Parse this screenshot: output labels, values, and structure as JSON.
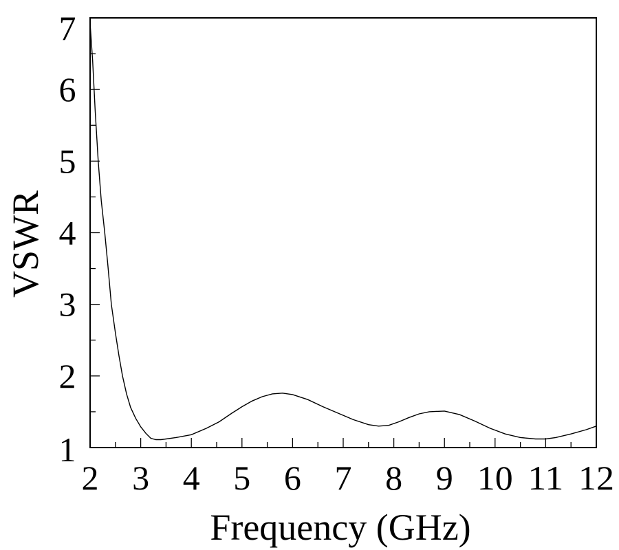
{
  "chart_data": {
    "type": "line",
    "title": "",
    "xlabel": "Frequency (GHz)",
    "ylabel": "VSWR",
    "xlim": [
      2,
      12
    ],
    "ylim": [
      1,
      7
    ],
    "xticks": [
      2,
      3,
      4,
      5,
      6,
      7,
      8,
      9,
      10,
      11,
      12
    ],
    "yticks": [
      1,
      2,
      3,
      4,
      5,
      6,
      7
    ],
    "x_minor_step": 0.5,
    "y_minor_step": 0.5,
    "grid": false,
    "legend": null,
    "series": [
      {
        "name": "VSWR",
        "color": "#000000",
        "x": [
          2.0,
          2.05,
          2.1,
          2.16,
          2.22,
          2.29,
          2.35,
          2.42,
          2.5,
          2.57,
          2.64,
          2.72,
          2.8,
          2.9,
          3.0,
          3.1,
          3.2,
          3.3,
          3.4,
          3.5,
          3.7,
          4.0,
          4.3,
          4.55,
          4.8,
          5.0,
          5.2,
          5.4,
          5.6,
          5.8,
          6.0,
          6.3,
          6.6,
          6.9,
          7.2,
          7.5,
          7.7,
          7.9,
          8.1,
          8.3,
          8.5,
          8.7,
          9.0,
          9.3,
          9.6,
          9.9,
          10.2,
          10.5,
          10.8,
          11.0,
          11.2,
          11.5,
          11.8,
          12.0
        ],
        "y": [
          6.92,
          6.4,
          5.7,
          5.0,
          4.45,
          4.0,
          3.55,
          3.0,
          2.6,
          2.28,
          2.0,
          1.75,
          1.56,
          1.41,
          1.29,
          1.2,
          1.13,
          1.11,
          1.11,
          1.12,
          1.14,
          1.18,
          1.27,
          1.36,
          1.48,
          1.57,
          1.65,
          1.71,
          1.75,
          1.76,
          1.74,
          1.67,
          1.57,
          1.48,
          1.39,
          1.32,
          1.3,
          1.31,
          1.36,
          1.42,
          1.47,
          1.5,
          1.51,
          1.46,
          1.37,
          1.27,
          1.19,
          1.14,
          1.12,
          1.12,
          1.14,
          1.19,
          1.25,
          1.3
        ]
      }
    ]
  },
  "axes": {
    "x_title": "Frequency (GHz)",
    "y_title": "VSWR"
  }
}
